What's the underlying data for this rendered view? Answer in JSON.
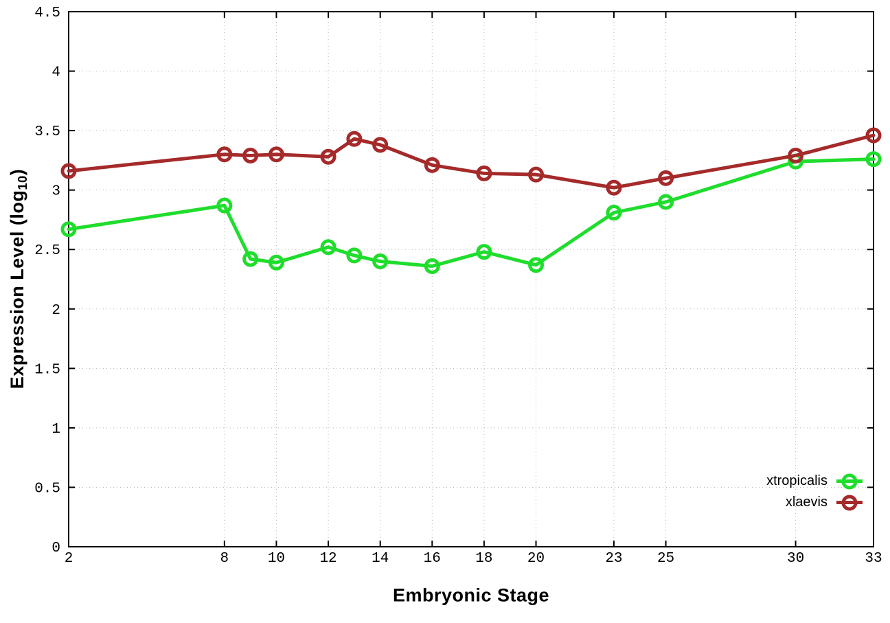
{
  "chart_data": {
    "type": "line",
    "title": "",
    "xlabel": "Embryonic Stage",
    "ylabel": "Expression Level (log10)",
    "ylabel_parts": {
      "main": "Expression Level (log",
      "sub": "10",
      "close": ")"
    },
    "x": [
      2,
      8,
      9,
      10,
      12,
      13,
      14,
      16,
      18,
      20,
      23,
      25,
      30,
      33
    ],
    "series": [
      {
        "name": "xtropicalis",
        "color": "#1fdd2c",
        "values": [
          2.67,
          2.87,
          2.42,
          2.39,
          2.52,
          2.45,
          2.4,
          2.36,
          2.48,
          2.37,
          2.81,
          2.9,
          3.24,
          3.26
        ]
      },
      {
        "name": "xlaevis",
        "color": "#a52a2a",
        "values": [
          3.16,
          3.3,
          3.29,
          3.3,
          3.28,
          3.43,
          3.38,
          3.21,
          3.14,
          3.13,
          3.02,
          3.1,
          3.29,
          3.46
        ]
      }
    ],
    "xlim": [
      2,
      33
    ],
    "ylim": [
      0,
      4.5
    ],
    "xticks": [
      2,
      8,
      10,
      12,
      14,
      16,
      18,
      20,
      23,
      25,
      30,
      33
    ],
    "yticks": [
      0,
      0.5,
      1,
      1.5,
      2,
      2.5,
      3,
      3.5,
      4,
      4.5
    ],
    "grid": true,
    "legend_position": "bottom-right",
    "marker": "open-circle",
    "border_color": "#000000",
    "grid_color": "#b3b3b3"
  }
}
